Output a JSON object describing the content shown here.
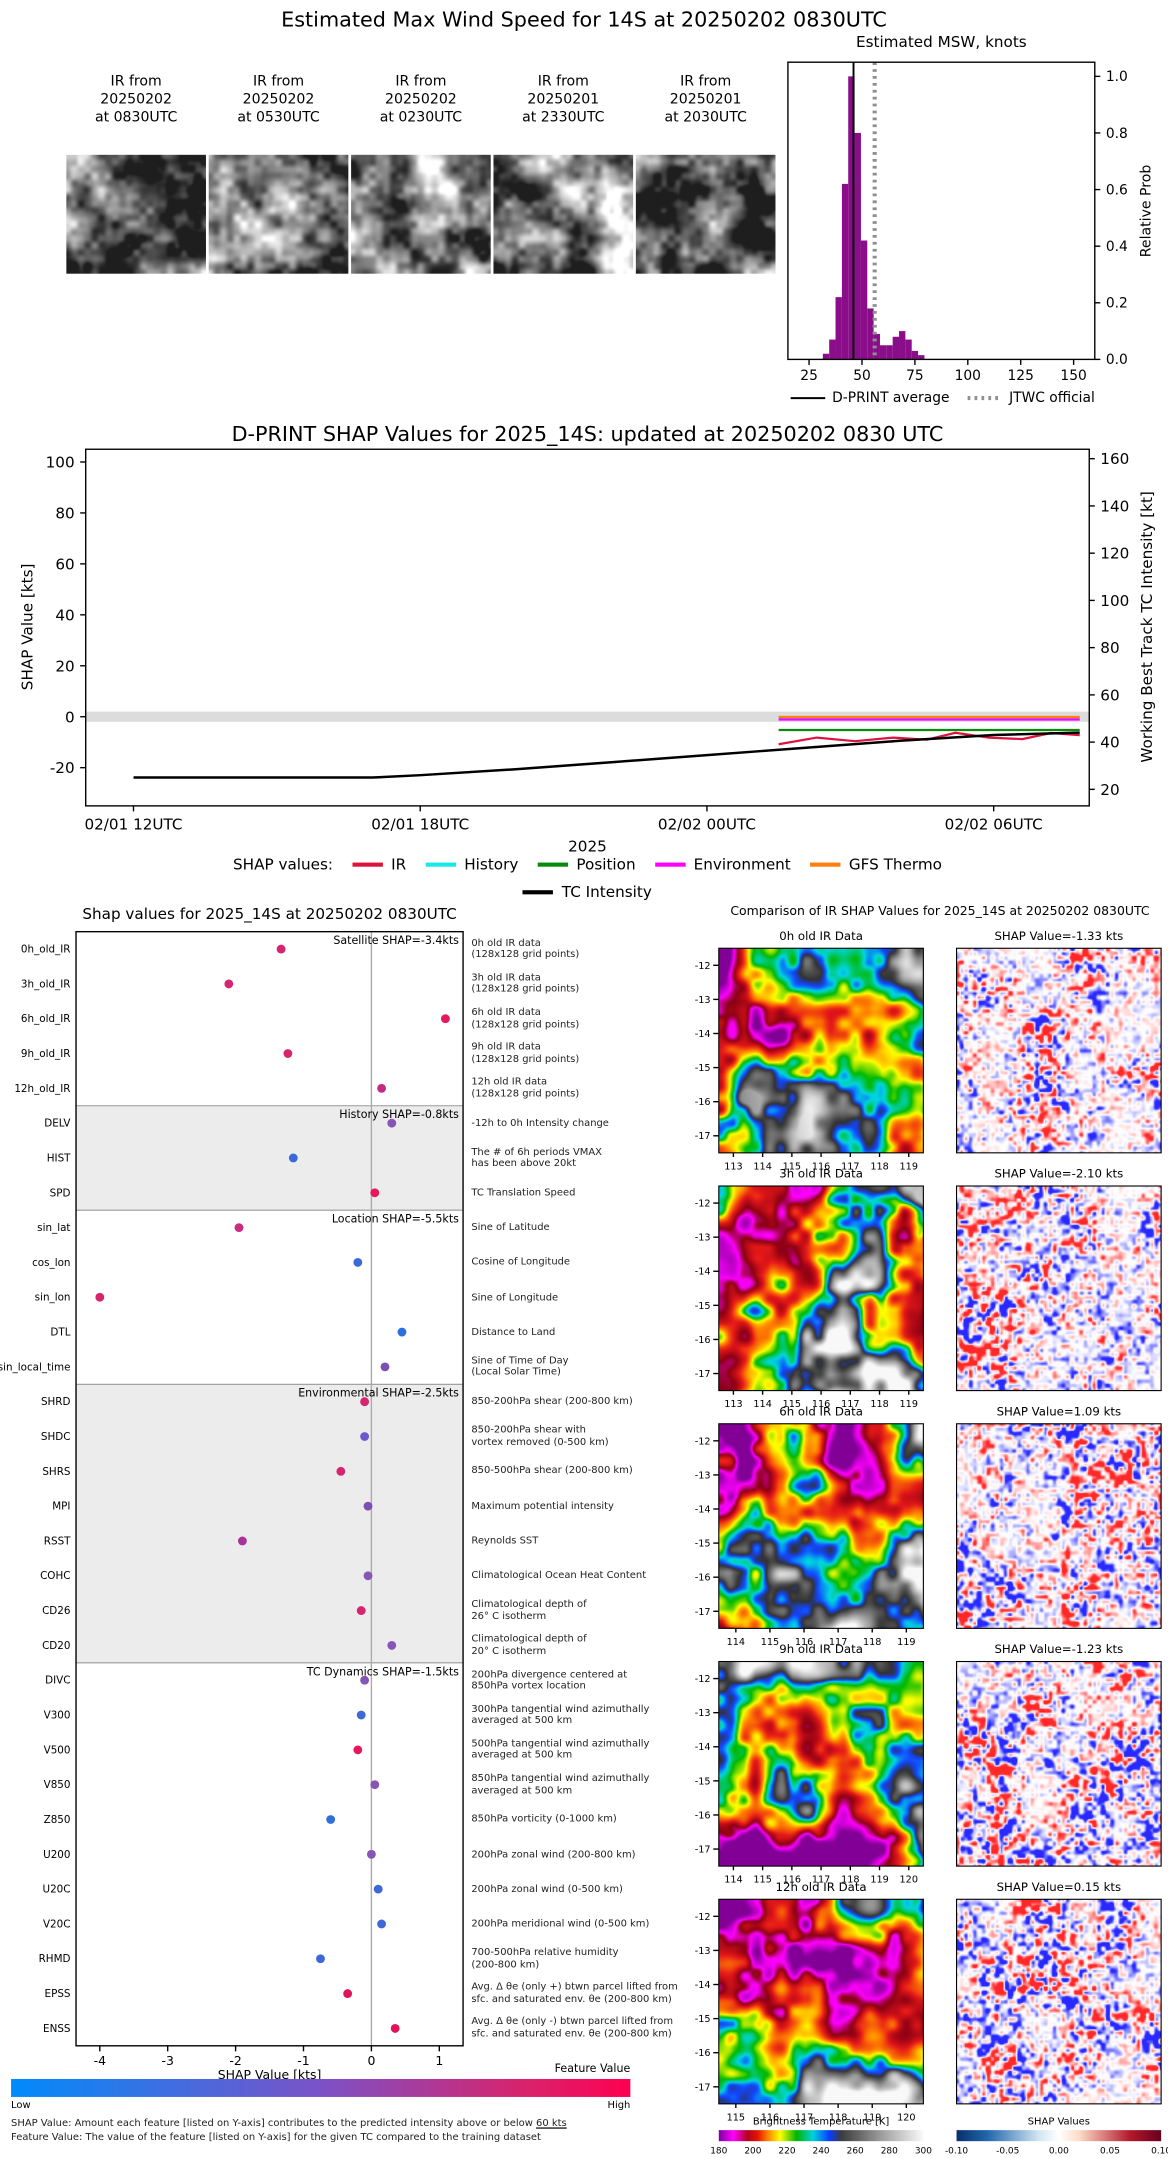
{
  "top_panel": {
    "title": "Estimated Max Wind Speed for 14S at 20250202 0830UTC",
    "thumbnails": [
      {
        "label": "IR from\n20250202\nat 0830UTC"
      },
      {
        "label": "IR from\n20250202\nat 0530UTC"
      },
      {
        "label": "IR from\n20250202\nat 0230UTC"
      },
      {
        "label": "IR from\n20250201\nat 2330UTC"
      },
      {
        "label": "IR from\n20250201\nat 2030UTC"
      }
    ]
  },
  "chart_data": [
    {
      "id": "msw_histogram",
      "type": "bar",
      "title": "Estimated MSW, knots",
      "ylabel": "Relative Prob",
      "xlim": [
        15,
        160
      ],
      "ylim": [
        0,
        1.05
      ],
      "xticks": [
        25,
        50,
        75,
        100,
        125,
        150
      ],
      "yticks": [
        0.0,
        0.2,
        0.4,
        0.6,
        0.8,
        1.0
      ],
      "bar_color": "#8a0e8a",
      "bin_width": 3,
      "bins": [
        {
          "x": 33,
          "p": 0.02
        },
        {
          "x": 36,
          "p": 0.07
        },
        {
          "x": 39,
          "p": 0.22
        },
        {
          "x": 42,
          "p": 0.62
        },
        {
          "x": 45,
          "p": 1.0
        },
        {
          "x": 48,
          "p": 0.8
        },
        {
          "x": 51,
          "p": 0.42
        },
        {
          "x": 54,
          "p": 0.18
        },
        {
          "x": 57,
          "p": 0.09
        },
        {
          "x": 60,
          "p": 0.05
        },
        {
          "x": 63,
          "p": 0.05
        },
        {
          "x": 66,
          "p": 0.08
        },
        {
          "x": 69,
          "p": 0.1
        },
        {
          "x": 72,
          "p": 0.07
        },
        {
          "x": 75,
          "p": 0.03
        },
        {
          "x": 78,
          "p": 0.015
        }
      ],
      "dprint_average": 46,
      "jtwc_official": 56,
      "legend": [
        {
          "label": "D-PRINT average",
          "color": "#000000",
          "style": "solid"
        },
        {
          "label": "JTWC official",
          "color": "#909090",
          "style": "dotted"
        }
      ]
    },
    {
      "id": "shap_timeseries",
      "type": "line",
      "title": "D-PRINT SHAP Values for 2025_14S: updated at 20250202 0830 UTC",
      "ylabel_left": "SHAP Value [kts]",
      "ylabel_right": "Working Best Track TC Intensity [kt]",
      "xlabel": "2025",
      "legend_title": "SHAP values:",
      "ylim_left": [
        -35,
        105
      ],
      "ylim_right": [
        13,
        164
      ],
      "xlim_hours": [
        -1,
        20
      ],
      "yticks_left": [
        100,
        80,
        60,
        40,
        20,
        0,
        -20
      ],
      "yticks_right": [
        160,
        140,
        120,
        100,
        80,
        60,
        40,
        20
      ],
      "xticks": [
        {
          "hour": 0,
          "label": "02/01 12UTC"
        },
        {
          "hour": 6,
          "label": "02/01 18UTC"
        },
        {
          "hour": 12,
          "label": "02/02 00UTC"
        },
        {
          "hour": 18,
          "label": "02/02 06UTC"
        }
      ],
      "zero_band": {
        "color": "#dcdcdc",
        "half_width": 2
      },
      "series": [
        {
          "name": "IR",
          "color": "#dc143c",
          "axis": "left",
          "z": 5,
          "width": 1.6,
          "points": [
            [
              13.5,
              -10.8
            ],
            [
              14.3,
              -8.2
            ],
            [
              15.1,
              -9.6
            ],
            [
              15.9,
              -8.2
            ],
            [
              16.6,
              -9.0
            ],
            [
              17.2,
              -6.3
            ],
            [
              17.9,
              -8.2
            ],
            [
              18.6,
              -8.8
            ],
            [
              19.2,
              -6.4
            ],
            [
              19.8,
              -7.2
            ]
          ]
        },
        {
          "name": "History",
          "color": "#17e8e8",
          "axis": "left",
          "z": 1,
          "width": 1.6,
          "points": [
            [
              13.5,
              -0.4
            ],
            [
              19.8,
              -0.4
            ]
          ]
        },
        {
          "name": "Position",
          "color": "#0a8a0a",
          "axis": "left",
          "z": 3,
          "width": 1.6,
          "points": [
            [
              13.5,
              -5.2
            ],
            [
              19.8,
              -5.2
            ]
          ]
        },
        {
          "name": "Environment",
          "color": "#ff00ff",
          "axis": "left",
          "z": 2,
          "width": 1.6,
          "points": [
            [
              13.5,
              -1.1
            ],
            [
              19.8,
              -1.1
            ]
          ]
        },
        {
          "name": "GFS Thermo",
          "color": "#ff7f0e",
          "axis": "left",
          "z": 1,
          "width": 1.6,
          "points": [
            [
              13.5,
              -0.1
            ],
            [
              19.8,
              -0.1
            ]
          ]
        },
        {
          "name": "TC Intensity",
          "color": "#000000",
          "axis": "right",
          "z": 6,
          "width": 1.8,
          "points": [
            [
              0,
              25
            ],
            [
              3,
              25
            ],
            [
              5,
              25
            ],
            [
              6,
              26
            ],
            [
              8,
              28.5
            ],
            [
              10,
              31.5
            ],
            [
              12,
              34.5
            ],
            [
              14,
              37.5
            ],
            [
              16,
              40.5
            ],
            [
              18,
              43
            ],
            [
              19.8,
              44
            ]
          ]
        }
      ]
    },
    {
      "id": "shap_dotplot",
      "type": "scatter",
      "title": "Shap values for 2025_14S at 20250202 0830UTC",
      "xlabel": "SHAP Value [kts]",
      "xlim": [
        -4.35,
        1.35
      ],
      "xticks": [
        -4,
        -3,
        -2,
        -1,
        0,
        1
      ],
      "colorbar": {
        "label": "Feature Value",
        "low": "Low",
        "high": "High",
        "gradient": [
          "#008bfb 0%",
          "#7b52c7 50%",
          "#d6246e 82%",
          "#ff0051 100%"
        ]
      },
      "footnote1": "SHAP Value: Amount each feature [listed on Y-axis] contributes to the predicted intensity above or below ",
      "footnote1_uline": "60 kts",
      "footnote2": "Feature Value: The value of the feature [listed on Y-axis] for the given TC compared to the training dataset",
      "sections": [
        {
          "label": "Satellite SHAP=-3.4kts",
          "rows": [
            0,
            4
          ],
          "shaded": false
        },
        {
          "label": "History SHAP=-0.8kts",
          "rows": [
            5,
            7
          ],
          "shaded": true
        },
        {
          "label": "Location SHAP=-5.5kts",
          "rows": [
            8,
            12
          ],
          "shaded": false
        },
        {
          "label": "Environmental SHAP=-2.5kts",
          "rows": [
            13,
            20
          ],
          "shaded": true
        },
        {
          "label": "TC Dynamics SHAP=-1.5kts",
          "rows": [
            21,
            31
          ],
          "shaded": false
        }
      ],
      "rows": [
        {
          "feature": "0h_old_IR",
          "shap": -1.33,
          "color": "#d6246e",
          "desc": "0h old IR data\n(128x128 grid points)"
        },
        {
          "feature": "3h_old_IR",
          "shap": -2.1,
          "color": "#d6246e",
          "desc": "3h old IR data\n(128x128 grid points)"
        },
        {
          "feature": "6h_old_IR",
          "shap": 1.09,
          "color": "#e8175d",
          "desc": "6h old IR data\n(128x128 grid points)"
        },
        {
          "feature": "9h_old_IR",
          "shap": -1.23,
          "color": "#d6246e",
          "desc": "9h old IR data\n(128x128 grid points)"
        },
        {
          "feature": "12h_old_IR",
          "shap": 0.15,
          "color": "#c32a86",
          "desc": "12h old IR data\n(128x128 grid points)"
        },
        {
          "feature": "DELV",
          "shap": 0.3,
          "color": "#8655b5",
          "desc": "-12h to 0h Intensity change"
        },
        {
          "feature": "HIST",
          "shap": -1.15,
          "color": "#3d68d8",
          "desc": "The # of 6h periods VMAX\nhas been above 20kt"
        },
        {
          "feature": "SPD",
          "shap": 0.05,
          "color": "#e8175d",
          "desc": "TC Translation Speed"
        },
        {
          "feature": "sin_lat",
          "shap": -1.95,
          "color": "#cc2a80",
          "desc": "Sine of Latitude"
        },
        {
          "feature": "cos_lon",
          "shap": -0.2,
          "color": "#3d68d8",
          "desc": "Cosine of Longitude"
        },
        {
          "feature": "sin_lon",
          "shap": -4.0,
          "color": "#d6246e",
          "desc": "Sine of Longitude"
        },
        {
          "feature": "DTL",
          "shap": 0.45,
          "color": "#2f6fdb",
          "desc": "Distance to Land"
        },
        {
          "feature": "sin_local_time",
          "shap": 0.2,
          "color": "#7d4fb3",
          "desc": "Sine of Time of Day\n(Local Solar Time)"
        },
        {
          "feature": "SHRD",
          "shap": -0.1,
          "color": "#d6246e",
          "desc": "850-200hPa shear (200-800 km)"
        },
        {
          "feature": "SHDC",
          "shap": -0.1,
          "color": "#6a5acd",
          "desc": "850-200hPa shear with\nvortex removed (0-500 km)"
        },
        {
          "feature": "SHRS",
          "shap": -0.45,
          "color": "#d6246e",
          "desc": "850-500hPa shear (200-800 km)"
        },
        {
          "feature": "MPI",
          "shap": -0.05,
          "color": "#7d4fb3",
          "desc": "Maximum potential intensity"
        },
        {
          "feature": "RSST",
          "shap": -1.9,
          "color": "#a83296",
          "desc": "Reynolds SST"
        },
        {
          "feature": "COHC",
          "shap": -0.05,
          "color": "#8655b5",
          "desc": "Climatological Ocean Heat Content"
        },
        {
          "feature": "CD26",
          "shap": -0.15,
          "color": "#d6246e",
          "desc": "Climatological depth of\n26° C isotherm"
        },
        {
          "feature": "CD20",
          "shap": 0.3,
          "color": "#8655b5",
          "desc": "Climatological depth of\n20° C isotherm"
        },
        {
          "feature": "DIVC",
          "shap": -0.1,
          "color": "#8655b5",
          "desc": "200hPa divergence centered at\n850hPa vortex location"
        },
        {
          "feature": "V300",
          "shap": -0.15,
          "color": "#3d68d8",
          "desc": "300hPa tangential wind azimuthally\naveraged at 500 km"
        },
        {
          "feature": "V500",
          "shap": -0.2,
          "color": "#e8175d",
          "desc": "500hPa tangential wind azimuthally\naveraged at 500 km"
        },
        {
          "feature": "V850",
          "shap": 0.05,
          "color": "#8655b5",
          "desc": "850hPa tangential wind azimuthally\naveraged at 500 km"
        },
        {
          "feature": "Z850",
          "shap": -0.6,
          "color": "#2f6fdb",
          "desc": "850hPa vorticity (0-1000 km)"
        },
        {
          "feature": "U200",
          "shap": 0.0,
          "color": "#8655b5",
          "desc": "200hPa zonal wind (200-800 km)"
        },
        {
          "feature": "U20C",
          "shap": 0.1,
          "color": "#3d68d8",
          "desc": "200hPa zonal wind (0-500 km)"
        },
        {
          "feature": "V20C",
          "shap": 0.15,
          "color": "#3d68d8",
          "desc": "200hPa meridional wind (0-500 km)"
        },
        {
          "feature": "RHMD",
          "shap": -0.75,
          "color": "#3d68d8",
          "desc": "700-500hPa relative humidity\n(200-800 km)"
        },
        {
          "feature": "EPSS",
          "shap": -0.35,
          "color": "#e0145a",
          "desc": "Avg. Δ θe (only +) btwn parcel lifted from\nsfc. and saturated env. θe (200-800 km)"
        },
        {
          "feature": "ENSS",
          "shap": 0.35,
          "color": "#e0145a",
          "desc": "Avg. Δ θe (only -) btwn parcel lifted from\nsfc. and saturated env. θe (200-800 km)"
        }
      ]
    },
    {
      "id": "ir_comparison",
      "type": "heatmap",
      "title": "Comparison of IR SHAP Values for 2025_14S at 20250202 0830UTC",
      "ylim": [
        -11.5,
        -17.5
      ],
      "yticks": [
        -12,
        -13,
        -14,
        -15,
        -16,
        -17
      ],
      "rows": [
        {
          "ir_title": "0h old IR Data",
          "shap_title": "SHAP Value=-1.33 kts",
          "xticks": [
            113,
            114,
            115,
            116,
            117,
            118,
            119
          ],
          "xlim": [
            112.5,
            119.5
          ],
          "ir_seed": 101,
          "shap_seed": 201,
          "cold": 1.25,
          "tilt": [
            0.9,
            -0.2
          ]
        },
        {
          "ir_title": "3h old IR Data",
          "shap_title": "SHAP Value=-2.10 kts",
          "xticks": [
            113,
            114,
            115,
            116,
            117,
            118,
            119
          ],
          "xlim": [
            112.5,
            119.5
          ],
          "ir_seed": 102,
          "shap_seed": 202,
          "cold": 1.9,
          "tilt": [
            -0.2,
            0.3
          ]
        },
        {
          "ir_title": "6h old IR Data",
          "shap_title": "SHAP Value=1.09 kts",
          "xticks": [
            114,
            115,
            116,
            117,
            118,
            119
          ],
          "xlim": [
            113.5,
            119.5
          ],
          "ir_seed": 103,
          "shap_seed": 203,
          "cold": 1.4,
          "tilt": [
            0.6,
            0.5
          ],
          "spot": [
            0.48,
            0.55
          ]
        },
        {
          "ir_title": "9h old IR Data",
          "shap_title": "SHAP Value=-1.23 kts",
          "xticks": [
            114,
            115,
            116,
            117,
            118,
            119,
            120
          ],
          "xlim": [
            113.5,
            120.5
          ],
          "ir_seed": 104,
          "shap_seed": 204,
          "cold": 1.5,
          "tilt": [
            0.5,
            -0.5
          ],
          "spot": [
            0.45,
            0.5
          ]
        },
        {
          "ir_title": "12h old IR Data",
          "shap_title": "SHAP Value=0.15 kts",
          "xticks": [
            115,
            116,
            117,
            118,
            119,
            120
          ],
          "xlim": [
            114.5,
            120.5
          ],
          "ir_seed": 105,
          "shap_seed": 205,
          "cold": 1.3,
          "tilt": [
            0.3,
            0.8
          ],
          "spot": [
            0.56,
            0.5
          ]
        }
      ],
      "bt_colorbar": {
        "label": "Brightness Temperature [K]",
        "ticks": [
          180,
          200,
          220,
          240,
          260,
          280,
          300
        ],
        "gradient": [
          "#7d00a0 0%",
          "#ff00ff 7%",
          "#b4001e 14%",
          "#e61400 19%",
          "#ff8200 24%",
          "#ffff00 30%",
          "#00b400 38%",
          "#00d2dc 46%",
          "#0a3cff 54%",
          "#3c3c3c 60%",
          "#a0a0a0 80%",
          "#fafafa 100%"
        ]
      },
      "shap_colorbar": {
        "label": "SHAP Values",
        "ticks": [
          "-0.10",
          "-0.05",
          "0.00",
          "0.05",
          "0.10"
        ],
        "gradient": [
          "#08306b 0%",
          "#2166ac 15%",
          "#d1e5f0 40%",
          "#ffffff 50%",
          "#fddbc7 60%",
          "#b2182b 85%",
          "#67001f 100%"
        ]
      }
    }
  ]
}
